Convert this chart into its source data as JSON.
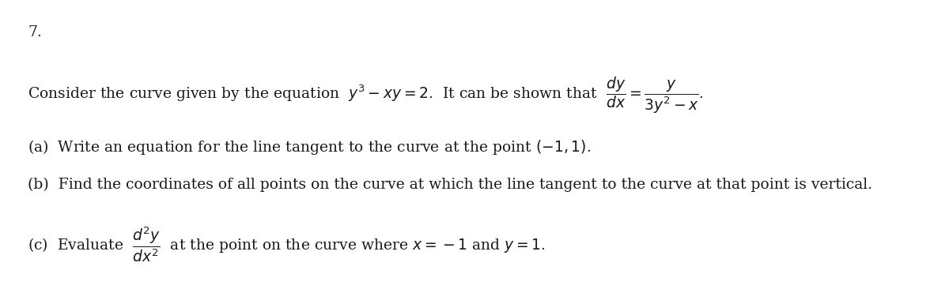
{
  "background_color": "#ffffff",
  "text_color": "#1a1a1a",
  "fig_width": 12.0,
  "fig_height": 3.85,
  "dpi": 100,
  "number": "7.",
  "line1": "Consider the curve given by the equation  $y^3 - xy = 2$.  It can be shown that  $\\dfrac{dy}{dx} = \\dfrac{y}{3y^2 - x}$.",
  "line_a": "(a)  Write an equation for the line tangent to the curve at the point $(-1, 1)$.",
  "line_b": "(b)  Find the coordinates of all points on the curve at which the line tangent to the curve at that point is vertical.",
  "line_c": "(c)  Evaluate  $\\dfrac{d^2y}{dx^2}$  at the point on the curve where $x = -1$ and $y = 1$.",
  "font_size": 13.5
}
